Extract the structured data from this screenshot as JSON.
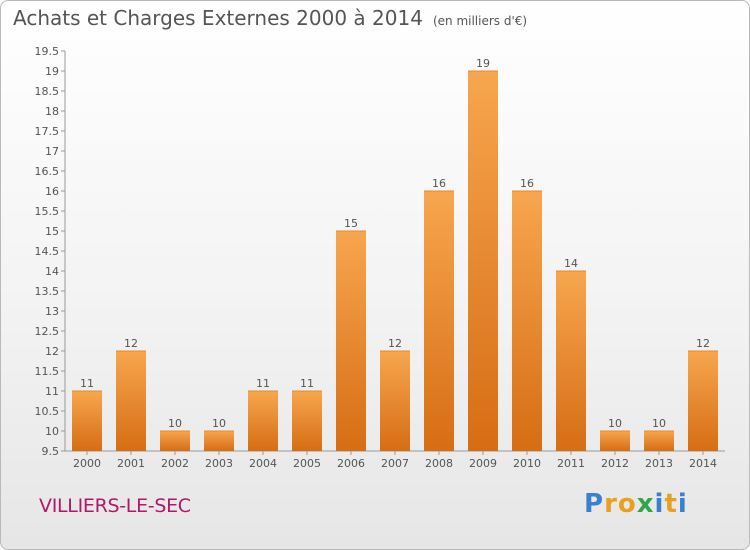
{
  "chart_data": {
    "type": "bar",
    "title": "Achats et Charges Externes 2000 à 2014",
    "unit": "(en milliers d'€)",
    "categories": [
      "2000",
      "2001",
      "2002",
      "2003",
      "2004",
      "2005",
      "2006",
      "2007",
      "2008",
      "2009",
      "2010",
      "2011",
      "2012",
      "2013",
      "2014"
    ],
    "values": [
      11,
      12,
      10,
      10,
      11,
      11,
      15,
      12,
      16,
      19,
      16,
      14,
      10,
      10,
      12
    ],
    "ylim": [
      9.5,
      19.5
    ],
    "yticks": [
      "9.5",
      "10",
      "10.5",
      "11",
      "11.5",
      "12",
      "12.5",
      "13",
      "13.5",
      "14",
      "14.5",
      "15",
      "15.5",
      "16",
      "16.5",
      "17",
      "17.5",
      "18",
      "18.5",
      "19",
      "19.5"
    ],
    "grid": false,
    "bar_color": "#f0923a"
  },
  "location": "VILLIERS-LE-SEC",
  "logo": {
    "letters": [
      "P",
      "r",
      "o",
      "x",
      "i",
      "t",
      "i"
    ],
    "colors": [
      "#3a7fd0",
      "#e8a020",
      "#e8a020",
      "#2ea84a",
      "#3a7fd0",
      "#e8a020",
      "#3a7fd0"
    ]
  }
}
